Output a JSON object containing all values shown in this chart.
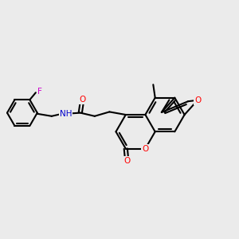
{
  "background_color": "#ebebeb",
  "bond_color": "#000000",
  "bond_width": 1.5,
  "atom_colors": {
    "O": "#ff0000",
    "N": "#0000cc",
    "F": "#cc00cc",
    "C": "#000000"
  },
  "font_size": 7.5,
  "figsize": [
    3.0,
    3.0
  ],
  "dpi": 100,
  "xlim": [
    0,
    10
  ],
  "ylim": [
    0,
    10
  ]
}
